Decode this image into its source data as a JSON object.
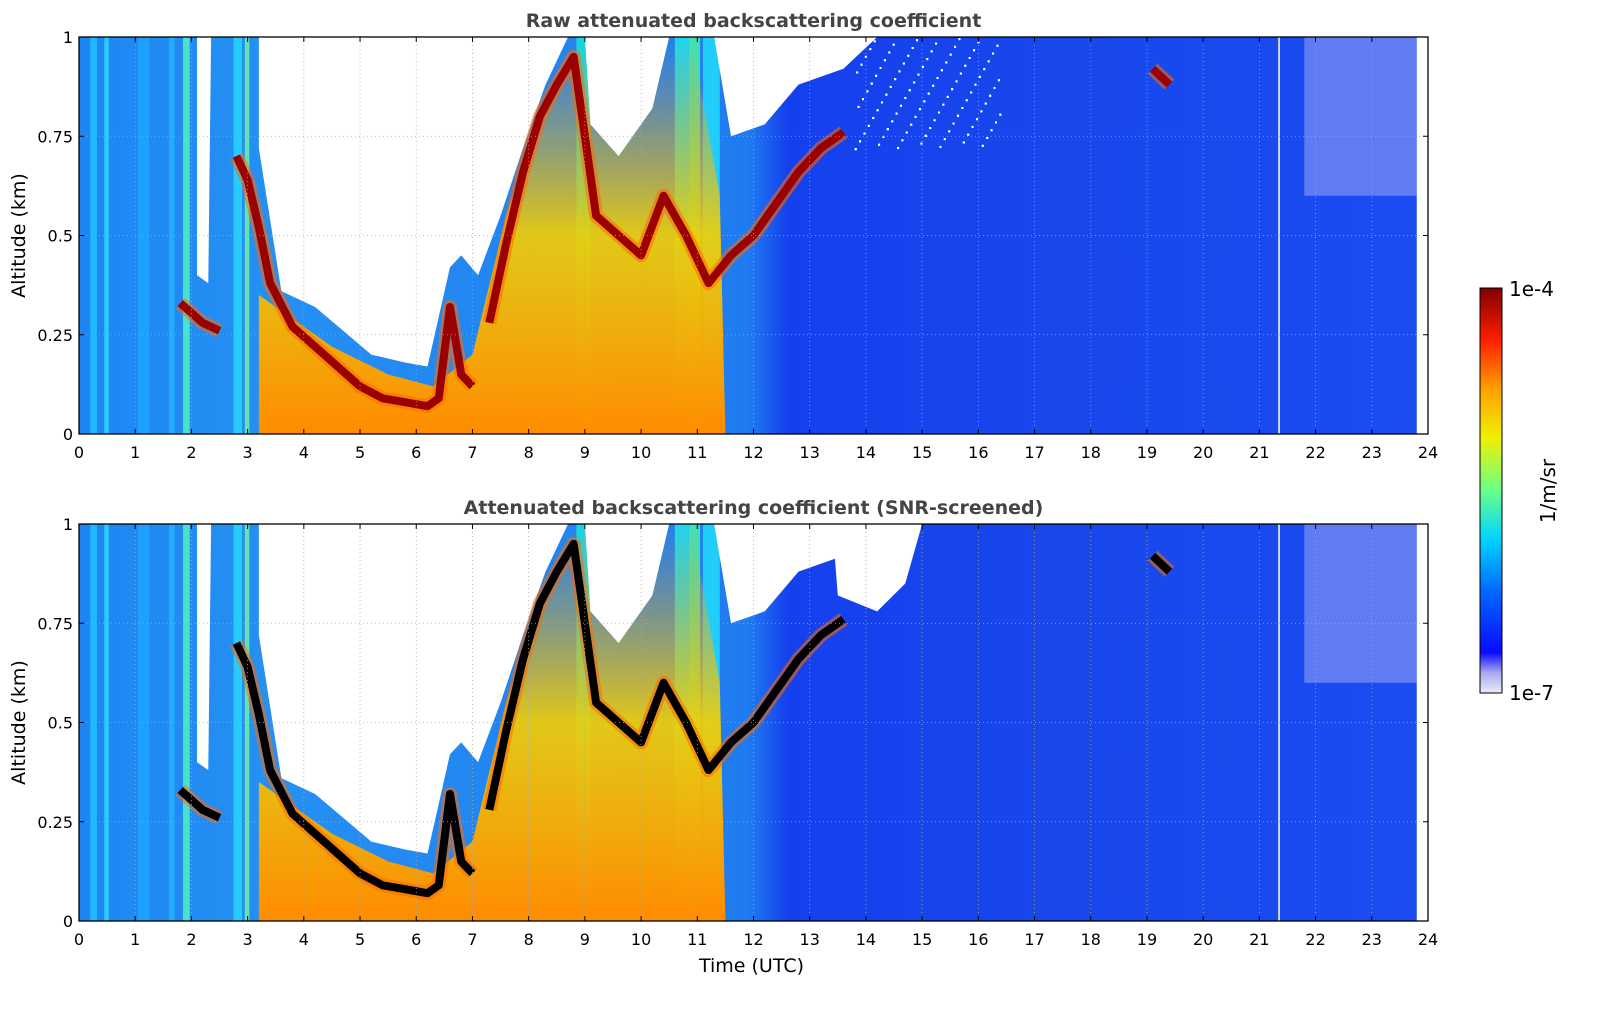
{
  "chart_data": [
    {
      "type": "heatmap",
      "title": "Raw attenuated backscattering coefficient",
      "xlabel": "",
      "ylabel": "Altitude (km)",
      "xlim": [
        0,
        24
      ],
      "ylim": [
        0,
        1
      ],
      "xticks": [
        "0",
        "1",
        "2",
        "3",
        "4",
        "5",
        "6",
        "7",
        "8",
        "9",
        "10",
        "11",
        "12",
        "13",
        "14",
        "15",
        "16",
        "17",
        "18",
        "19",
        "20",
        "21",
        "22",
        "23",
        "24"
      ],
      "yticks": [
        "0",
        "0.25",
        "0.5",
        "0.75",
        "1"
      ],
      "grid": true,
      "data_end_time": 23.8,
      "features": {
        "cloud_base_km": [
          [
            1.8,
            0.33
          ],
          [
            2.2,
            0.28
          ],
          [
            2.5,
            0.26
          ],
          [
            2.8,
            0.7
          ],
          [
            3.0,
            0.64
          ],
          [
            3.2,
            0.52
          ],
          [
            3.4,
            0.38
          ],
          [
            3.8,
            0.27
          ],
          [
            4.2,
            0.22
          ],
          [
            4.6,
            0.17
          ],
          [
            5.0,
            0.12
          ],
          [
            5.4,
            0.09
          ],
          [
            5.8,
            0.08
          ],
          [
            6.2,
            0.07
          ],
          [
            6.4,
            0.09
          ],
          [
            6.6,
            0.32
          ],
          [
            6.8,
            0.15
          ],
          [
            7.0,
            0.12
          ],
          [
            7.3,
            0.28
          ],
          [
            7.6,
            0.48
          ],
          [
            7.9,
            0.66
          ],
          [
            8.2,
            0.8
          ],
          [
            8.5,
            0.88
          ],
          [
            8.8,
            0.95
          ],
          [
            9.2,
            0.55
          ],
          [
            9.6,
            0.5
          ],
          [
            10.0,
            0.45
          ],
          [
            10.4,
            0.6
          ],
          [
            10.8,
            0.5
          ],
          [
            11.2,
            0.38
          ],
          [
            11.6,
            0.45
          ],
          [
            12.0,
            0.5
          ],
          [
            12.4,
            0.58
          ],
          [
            12.8,
            0.66
          ],
          [
            13.2,
            0.72
          ],
          [
            13.6,
            0.76
          ],
          [
            19.1,
            0.92
          ],
          [
            19.4,
            0.88
          ]
        ],
        "clear_air_regions": [
          [
            3.2,
            6.3
          ],
          [
            14.0,
            15.0
          ]
        ]
      }
    },
    {
      "type": "heatmap",
      "title": "Attenuated backscattering coefficient (SNR-screened)",
      "xlabel": "Time (UTC)",
      "ylabel": "Altitude (km)",
      "xlim": [
        0,
        24
      ],
      "ylim": [
        0,
        1
      ],
      "xticks": [
        "0",
        "1",
        "2",
        "3",
        "4",
        "5",
        "6",
        "7",
        "8",
        "9",
        "10",
        "11",
        "12",
        "13",
        "14",
        "15",
        "16",
        "17",
        "18",
        "19",
        "20",
        "21",
        "22",
        "23",
        "24"
      ],
      "yticks": [
        "0",
        "0.25",
        "0.5",
        "0.75",
        "1"
      ],
      "grid": true,
      "data_end_time": 23.8
    }
  ],
  "colorbar": {
    "max_label": "1e-4",
    "min_label": "1e-7",
    "label": "1/m/sr",
    "colormap": "jet",
    "low_color": "#e8e8f8",
    "high_color": "#800000"
  },
  "colors": {
    "title": "#444444",
    "grid": "#aaaaaa"
  }
}
